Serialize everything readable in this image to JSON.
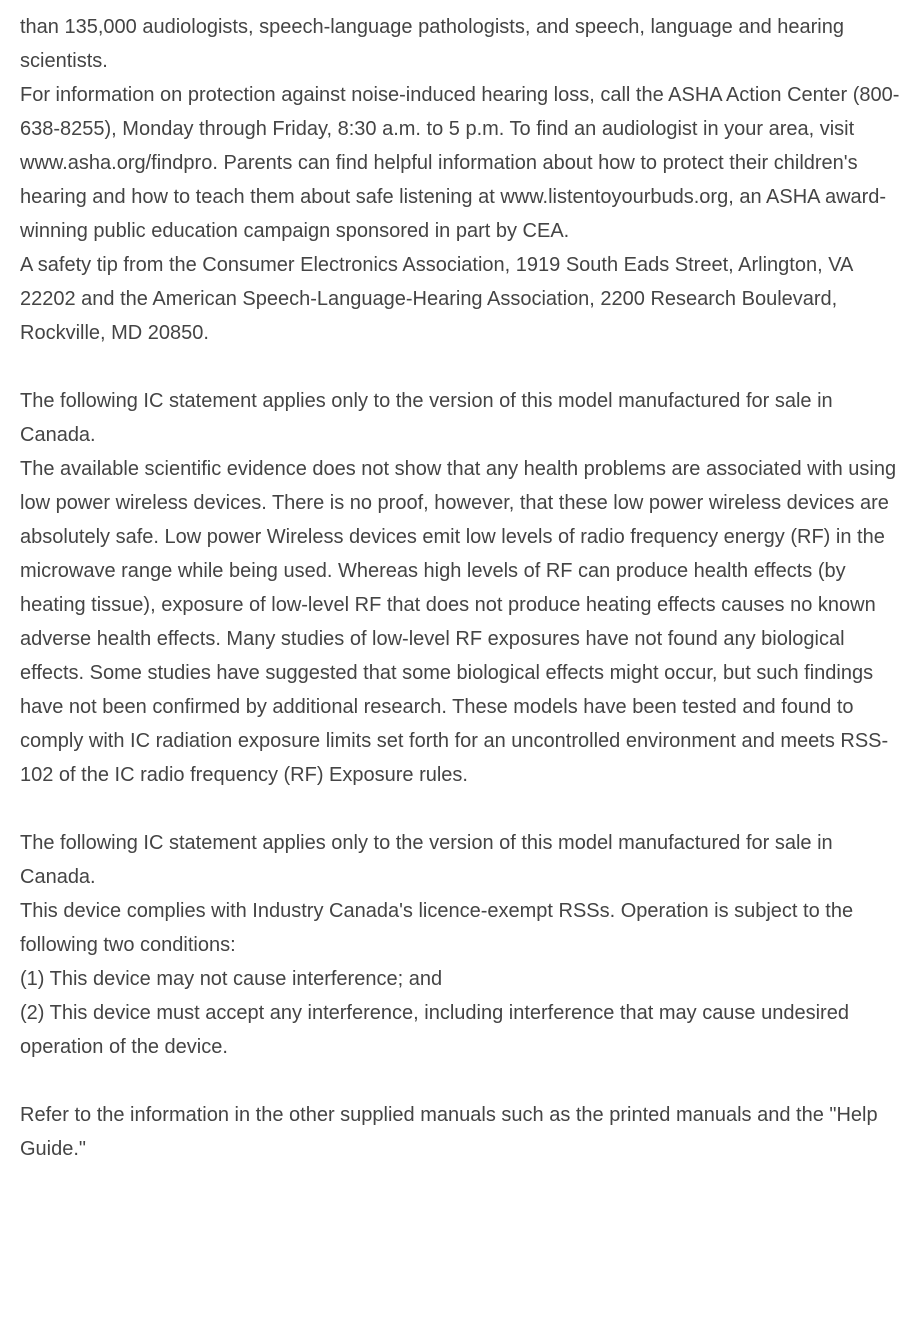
{
  "document": {
    "paragraphs": [
      {
        "id": "p1",
        "text": "than 135,000 audiologists, speech-language pathologists, and speech, language and hearing scientists."
      },
      {
        "id": "p2",
        "text": "For information on protection against noise-induced hearing loss, call the ASHA Action Center (800-638-8255), Monday through Friday, 8:30 a.m. to 5 p.m. To find an audiologist in your area, visit www.asha.org/findpro. Parents can find helpful information about how to protect their children's hearing and how to teach them about safe listening at www.listentoyourbuds.org, an ASHA award-winning public education campaign sponsored in part by CEA."
      },
      {
        "id": "p3",
        "text": "A safety tip from the Consumer Electronics Association, 1919 South Eads Street, Arlington, VA 22202 and the American Speech-Language-Hearing Association, 2200 Research Boulevard, Rockville, MD 20850."
      },
      {
        "id": "p4",
        "text": "The following IC statement applies only to the version of this model manufactured for sale in Canada."
      },
      {
        "id": "p5",
        "text": "The available scientific evidence does not show that any health problems are associated with using low power wireless devices. There is no proof, however, that these low power wireless devices are absolutely safe. Low power Wireless devices emit low levels of radio frequency energy (RF) in the microwave range while being used. Whereas high levels of RF can produce health effects (by heating tissue), exposure of low-level RF that does not produce heating effects causes no known adverse health effects. Many studies of low-level RF exposures have not found any biological effects. Some studies have suggested that some biological effects might occur, but such findings have not been confirmed by additional research. These models have been tested and found to comply with IC radiation exposure limits set forth for an uncontrolled environment and meets RSS-102 of the IC radio frequency (RF) Exposure rules."
      },
      {
        "id": "p6",
        "text": "The following IC statement applies only to the version of this model manufactured for sale in Canada."
      },
      {
        "id": "p7",
        "text": "This device complies with Industry Canada's licence-exempt RSSs. Operation is subject to the following two conditions:"
      },
      {
        "id": "p8",
        "text": "(1) This device may not cause interference; and"
      },
      {
        "id": "p9",
        "text": "(2) This device must accept any interference, including interference that may cause undesired operation of the device."
      },
      {
        "id": "p10",
        "text": "Refer to the information in the other supplied manuals such as the printed manuals and the \"Help Guide.\""
      }
    ],
    "text_color": "#444444",
    "background_color": "#ffffff",
    "font_size": 20,
    "line_height": 1.7
  }
}
